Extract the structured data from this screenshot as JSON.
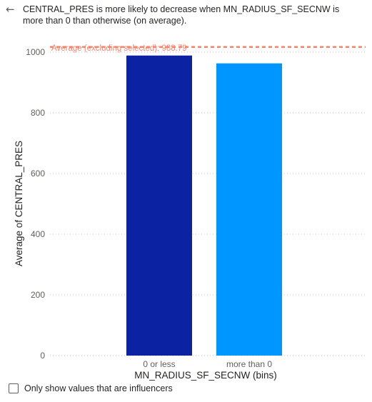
{
  "header": {
    "description": "CENTRAL_PRES is more likely to decrease when MN_RADIUS_SF_SECNW is more than 0 than otherwise (on average).",
    "back_icon": "arrow-left-icon"
  },
  "chart_data": {
    "type": "bar",
    "categories": [
      "0 or less",
      "more than 0"
    ],
    "values": [
      988.79,
      963
    ],
    "colors": [
      "#0b23a3",
      "#0096ff"
    ],
    "xlabel": "MN_RADIUS_SF_SECNW (bins)",
    "ylabel": "Average of CENTRAL_PRES",
    "ylim": [
      0,
      1000
    ],
    "yticks": [
      0,
      200,
      400,
      600,
      800,
      1000
    ],
    "grid": true,
    "reference_line": {
      "label": "Average (excluding selected): 988.79",
      "value": 988.79,
      "color": "#f7836a"
    }
  },
  "footer": {
    "checkbox_label": "Only show values that are influencers",
    "checkbox_checked": false
  }
}
